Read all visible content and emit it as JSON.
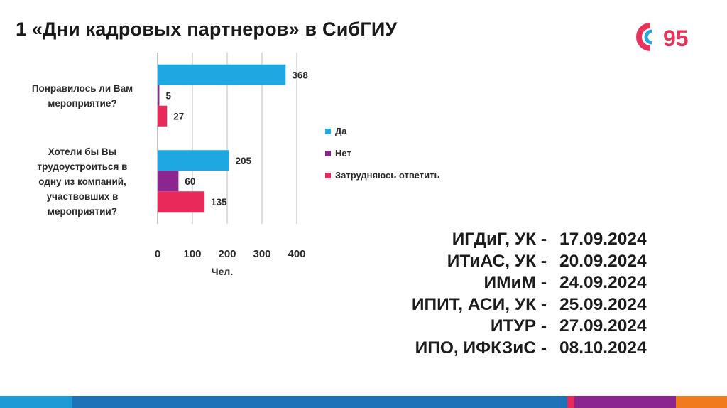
{
  "header": {
    "title": "1 «Дни кадровых партнеров» в СибГИУ"
  },
  "logo": {
    "icon": "sibgiu-95-logo",
    "text": "95",
    "colors": [
      "#e8345c",
      "#2aa6dd",
      "#8a2e8f",
      "#f39200"
    ]
  },
  "chart_data": {
    "type": "bar",
    "orientation": "horizontal",
    "categories": [
      [
        "Понравилось ли Вам",
        "мероприятие?"
      ],
      [
        "Хотели бы Вы",
        "трудоустроиться в",
        "одну из компаний,",
        "участвовших в",
        "мероприятии?"
      ]
    ],
    "series": [
      {
        "name": "Да",
        "color": "#1ea7e1",
        "values": [
          368,
          205
        ]
      },
      {
        "name": "Нет",
        "color": "#8b2690",
        "values": [
          5,
          60
        ]
      },
      {
        "name": "Затрудняюсь ответить",
        "color": "#e8295a",
        "values": [
          27,
          135
        ]
      }
    ],
    "x_ticks": [
      "0",
      "100",
      "200",
      "300",
      "400"
    ],
    "xlim": [
      0,
      400
    ],
    "xlabel": "Чел.",
    "grid": "vertical",
    "legend_position": "right"
  },
  "schedule": [
    {
      "institute": "ИГДиГ, УК -",
      "date": "17.09.2024"
    },
    {
      "institute": "ИТиАС, УК -",
      "date": "20.09.2024"
    },
    {
      "institute": "ИМиМ -",
      "date": "24.09.2024"
    },
    {
      "institute": "ИПИТ, АСИ, УК -",
      "date": "25.09.2024"
    },
    {
      "institute": "ИТУР -",
      "date": "27.09.2024"
    },
    {
      "institute": "ИПО, ИФКЗиС -",
      "date": "08.10.2024"
    }
  ],
  "footer": {
    "colors": [
      "#1e9ad6",
      "#1e73b8",
      "#e8295a",
      "#8b2690",
      "#f07a1e"
    ]
  }
}
